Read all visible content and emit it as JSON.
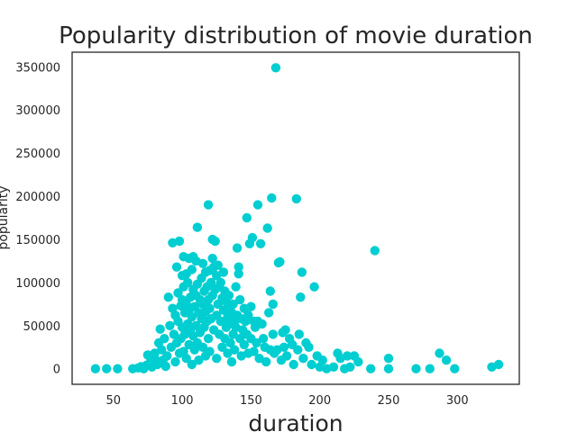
{
  "chart_data": {
    "type": "scatter",
    "title": "Popularity distribution of movie duration",
    "xlabel": "duration",
    "ylabel": "popularity",
    "xlim": [
      20,
      345
    ],
    "ylim": [
      -18000,
      367000
    ],
    "xticks": [
      50,
      100,
      150,
      200,
      250,
      300
    ],
    "yticks": [
      0,
      50000,
      100000,
      150000,
      200000,
      250000,
      300000,
      350000
    ],
    "grid": false,
    "marker_color": "#00ced1",
    "series": [
      {
        "points": [
          [
            37,
            0
          ],
          [
            45,
            0
          ],
          [
            53,
            0
          ],
          [
            64,
            0
          ],
          [
            68,
            1000
          ],
          [
            70,
            2500
          ],
          [
            72,
            0
          ],
          [
            74,
            4000
          ],
          [
            75,
            16000
          ],
          [
            77,
            8000
          ],
          [
            78,
            2000
          ],
          [
            80,
            12000
          ],
          [
            80,
            18000
          ],
          [
            82,
            5000
          ],
          [
            83,
            30000
          ],
          [
            84,
            46000
          ],
          [
            85,
            22000
          ],
          [
            86,
            10000
          ],
          [
            87,
            35000
          ],
          [
            88,
            3000
          ],
          [
            89,
            15000
          ],
          [
            90,
            83000
          ],
          [
            91,
            50000
          ],
          [
            92,
            25000
          ],
          [
            93,
            146000
          ],
          [
            93,
            70000
          ],
          [
            94,
            40000
          ],
          [
            95,
            62000
          ],
          [
            95,
            8000
          ],
          [
            96,
            118000
          ],
          [
            96,
            30000
          ],
          [
            97,
            88000
          ],
          [
            97,
            55000
          ],
          [
            98,
            148000
          ],
          [
            98,
            18000
          ],
          [
            99,
            73000
          ],
          [
            99,
            35000
          ],
          [
            100,
            108000
          ],
          [
            100,
            80000
          ],
          [
            100,
            48000
          ],
          [
            101,
            130000
          ],
          [
            101,
            95000
          ],
          [
            101,
            20000
          ],
          [
            102,
            65000
          ],
          [
            102,
            40000
          ],
          [
            103,
            110000
          ],
          [
            103,
            75000
          ],
          [
            103,
            12000
          ],
          [
            104,
            100000
          ],
          [
            104,
            52000
          ],
          [
            105,
            128000
          ],
          [
            105,
            68000
          ],
          [
            105,
            28000
          ],
          [
            106,
            83000
          ],
          [
            106,
            45000
          ],
          [
            107,
            115000
          ],
          [
            107,
            60000
          ],
          [
            107,
            5000
          ],
          [
            108,
            130000
          ],
          [
            108,
            92000
          ],
          [
            108,
            38000
          ],
          [
            109,
            72000
          ],
          [
            109,
            22000
          ],
          [
            110,
            125000
          ],
          [
            110,
            85000
          ],
          [
            110,
            50000
          ],
          [
            111,
            164000
          ],
          [
            111,
            98000
          ],
          [
            111,
            30000
          ],
          [
            112,
            65000
          ],
          [
            112,
            10000
          ],
          [
            113,
            80000
          ],
          [
            113,
            42000
          ],
          [
            114,
            105000
          ],
          [
            114,
            58000
          ],
          [
            115,
            122000
          ],
          [
            115,
            75000
          ],
          [
            115,
            25000
          ],
          [
            116,
            90000
          ],
          [
            116,
            48000
          ],
          [
            117,
            112000
          ],
          [
            117,
            66000
          ],
          [
            117,
            15000
          ],
          [
            118,
            95000
          ],
          [
            118,
            55000
          ],
          [
            119,
            190000
          ],
          [
            119,
            80000
          ],
          [
            119,
            35000
          ],
          [
            120,
            114000
          ],
          [
            120,
            70000
          ],
          [
            120,
            20000
          ],
          [
            121,
            100000
          ],
          [
            121,
            58000
          ],
          [
            122,
            128000
          ],
          [
            122,
            150000
          ],
          [
            122,
            85000
          ],
          [
            123,
            118000
          ],
          [
            123,
            45000
          ],
          [
            124,
            148000
          ],
          [
            124,
            92000
          ],
          [
            125,
            108000
          ],
          [
            125,
            62000
          ],
          [
            125,
            12000
          ],
          [
            126,
            120000
          ],
          [
            126,
            75000
          ],
          [
            127,
            95000
          ],
          [
            127,
            40000
          ],
          [
            128,
            100000
          ],
          [
            128,
            55000
          ],
          [
            129,
            82000
          ],
          [
            129,
            25000
          ],
          [
            130,
            112000
          ],
          [
            130,
            68000
          ],
          [
            131,
            90000
          ],
          [
            131,
            35000
          ],
          [
            132,
            78000
          ],
          [
            132,
            48000
          ],
          [
            133,
            60000
          ],
          [
            133,
            18000
          ],
          [
            134,
            85000
          ],
          [
            134,
            52000
          ],
          [
            135,
            72000
          ],
          [
            135,
            30000
          ],
          [
            136,
            65000
          ],
          [
            136,
            8000
          ],
          [
            137,
            75000
          ],
          [
            137,
            40000
          ],
          [
            138,
            55000
          ],
          [
            138,
            22000
          ],
          [
            139,
            95000
          ],
          [
            139,
            48000
          ],
          [
            140,
            140000
          ],
          [
            140,
            62000
          ],
          [
            141,
            118000
          ],
          [
            141,
            110000
          ],
          [
            142,
            80000
          ],
          [
            142,
            35000
          ],
          [
            143,
            58000
          ],
          [
            143,
            15000
          ],
          [
            144,
            45000
          ],
          [
            145,
            70000
          ],
          [
            145,
            28000
          ],
          [
            146,
            55000
          ],
          [
            147,
            175000
          ],
          [
            147,
            40000
          ],
          [
            148,
            62000
          ],
          [
            148,
            18000
          ],
          [
            149,
            145000
          ],
          [
            150,
            72000
          ],
          [
            150,
            35000
          ],
          [
            151,
            152000
          ],
          [
            152,
            55000
          ],
          [
            152,
            20000
          ],
          [
            153,
            48000
          ],
          [
            154,
            30000
          ],
          [
            155,
            190000
          ],
          [
            155,
            55000
          ],
          [
            156,
            12000
          ],
          [
            157,
            145000
          ],
          [
            158,
            52000
          ],
          [
            159,
            35000
          ],
          [
            160,
            25000
          ],
          [
            161,
            8000
          ],
          [
            162,
            163000
          ],
          [
            163,
            65000
          ],
          [
            164,
            90000
          ],
          [
            164,
            22000
          ],
          [
            165,
            198000
          ],
          [
            166,
            75000
          ],
          [
            166,
            40000
          ],
          [
            167,
            18000
          ],
          [
            168,
            349000
          ],
          [
            169,
            22000
          ],
          [
            170,
            123000
          ],
          [
            171,
            124000
          ],
          [
            172,
            10000
          ],
          [
            173,
            42000
          ],
          [
            174,
            25000
          ],
          [
            175,
            45000
          ],
          [
            176,
            15000
          ],
          [
            178,
            35000
          ],
          [
            180,
            28000
          ],
          [
            181,
            5000
          ],
          [
            183,
            197000
          ],
          [
            184,
            22000
          ],
          [
            185,
            40000
          ],
          [
            186,
            83000
          ],
          [
            187,
            112000
          ],
          [
            188,
            12000
          ],
          [
            190,
            30000
          ],
          [
            192,
            25000
          ],
          [
            194,
            5000
          ],
          [
            196,
            95000
          ],
          [
            198,
            15000
          ],
          [
            200,
            2000
          ],
          [
            202,
            10000
          ],
          [
            205,
            0
          ],
          [
            210,
            2000
          ],
          [
            213,
            18000
          ],
          [
            215,
            12000
          ],
          [
            218,
            0
          ],
          [
            220,
            15000
          ],
          [
            222,
            2000
          ],
          [
            225,
            15000
          ],
          [
            228,
            8000
          ],
          [
            237,
            0
          ],
          [
            240,
            137000
          ],
          [
            250,
            12000
          ],
          [
            250,
            0
          ],
          [
            270,
            0
          ],
          [
            280,
            0
          ],
          [
            287,
            18000
          ],
          [
            292,
            10000
          ],
          [
            298,
            0
          ],
          [
            325,
            2000
          ],
          [
            330,
            5000
          ]
        ]
      }
    ]
  }
}
